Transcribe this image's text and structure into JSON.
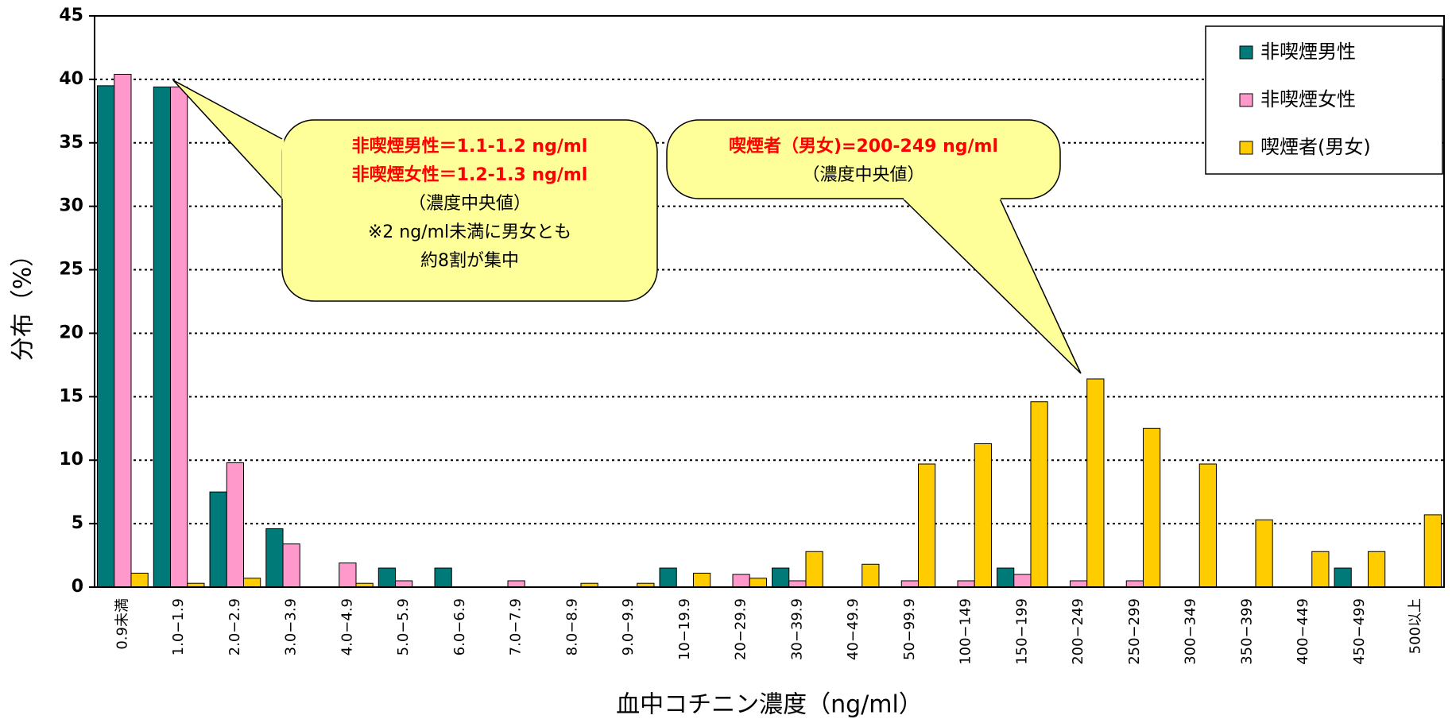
{
  "chart_data": {
    "type": "bar",
    "x_label": "血中コチニン濃度（ng/ml）",
    "y_label": "分布（%）",
    "categories": [
      "0.9未満",
      "1.0−1.9",
      "2.0−2.9",
      "3.0−3.9",
      "4.0−4.9",
      "5.0−5.9",
      "6.0−6.9",
      "7.0−7.9",
      "8.0−8.9",
      "9.0−9.9",
      "10−19.9",
      "20−29.9",
      "30−39.9",
      "40−49.9",
      "50−99.9",
      "100−149",
      "150−199",
      "200−249",
      "250−299",
      "300−349",
      "350−399",
      "400−449",
      "450−499",
      "500以上"
    ],
    "series": [
      {
        "name": "非喫煙男性",
        "color": "#007a78",
        "values": [
          39.5,
          39.4,
          7.5,
          4.6,
          0,
          1.5,
          1.5,
          0,
          0,
          0,
          1.5,
          0,
          1.5,
          0,
          0,
          0,
          1.5,
          0,
          0,
          0,
          0,
          0,
          1.5,
          0
        ]
      },
      {
        "name": "非喫煙女性",
        "color": "#ff99cc",
        "values": [
          40.4,
          39.4,
          9.8,
          3.4,
          1.9,
          0.5,
          0,
          0.5,
          0,
          0,
          0,
          1.0,
          0.5,
          0,
          0.5,
          0.5,
          1.0,
          0.5,
          0.5,
          0,
          0,
          0,
          0,
          0
        ]
      },
      {
        "name": "喫煙者(男女)",
        "color": "#ffcc00",
        "values": [
          1.1,
          0.3,
          0.7,
          0,
          0.3,
          0,
          0,
          0,
          0.3,
          0.3,
          1.1,
          0.7,
          2.8,
          1.8,
          9.7,
          11.3,
          14.6,
          16.4,
          12.5,
          9.7,
          5.3,
          2.8,
          2.8,
          5.7
        ]
      }
    ],
    "ylim": [
      0,
      45
    ],
    "yticks": [
      0,
      5,
      10,
      15,
      20,
      25,
      30,
      35,
      40,
      45
    ],
    "grid": true,
    "legend": "upper right",
    "annotations": [
      {
        "red_lines": [
          "非喫煙男性＝1.1-1.2 ng/ml",
          "非喫煙女性＝1.2-1.3 ng/ml"
        ],
        "lines": [
          "（濃度中央値）",
          "※2 ng/ml未満に男女とも",
          "約8割が集中"
        ]
      },
      {
        "red_lines": [
          "喫煙者（男女)=200-249 ng/ml"
        ],
        "lines": [
          "（濃度中央値）"
        ]
      }
    ]
  }
}
